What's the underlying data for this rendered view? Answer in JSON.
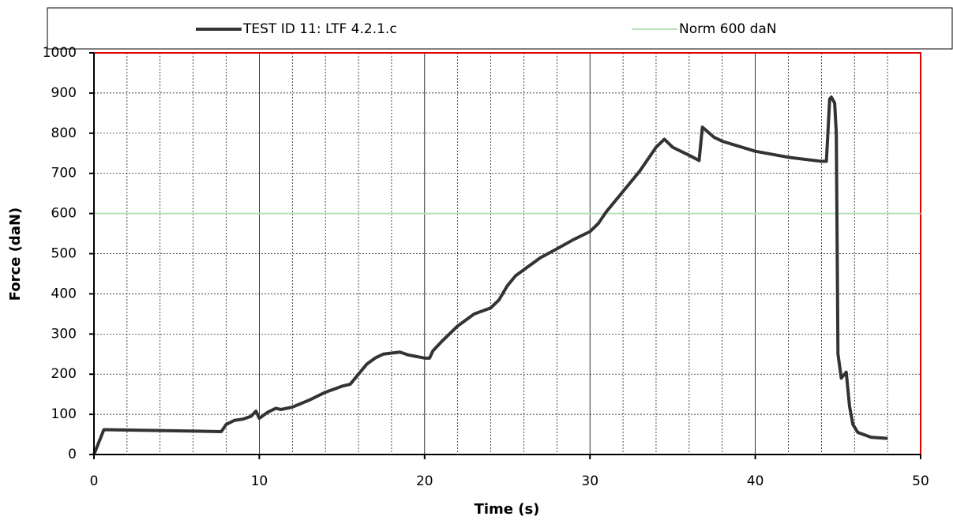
{
  "chart_data": {
    "type": "line",
    "xlabel": "Time (s)",
    "ylabel": "Force (daN)",
    "xlim": [
      0,
      50
    ],
    "xticks": [
      0,
      10,
      20,
      30,
      40,
      50
    ],
    "xminorticks": [
      2,
      4,
      6,
      8,
      12,
      14,
      16,
      18,
      22,
      24,
      26,
      28,
      32,
      34,
      36,
      38,
      42,
      44,
      46,
      48
    ],
    "ylim": [
      0,
      1000
    ],
    "yticks": [
      0,
      100,
      200,
      300,
      400,
      500,
      600,
      700,
      800,
      900,
      1000
    ],
    "grid": true,
    "series": [
      {
        "name": "TEST ID 11: LTF 4.2.1.c",
        "color": "#333333",
        "x": [
          0,
          0.6,
          7.7,
          8,
          8.5,
          9,
          9.5,
          9.8,
          10,
          10.5,
          11,
          11.3,
          12,
          13,
          14,
          15,
          15.5,
          16,
          16.5,
          17,
          17.5,
          18.5,
          19,
          20,
          20.3,
          20.5,
          21,
          22,
          23,
          24,
          24.5,
          25,
          25.5,
          26,
          27,
          28,
          29,
          30,
          30.5,
          31,
          32,
          33,
          34,
          34.5,
          35,
          36,
          36.6,
          36.8,
          37.5,
          38,
          40,
          42,
          44,
          44.3,
          44.5,
          44.6,
          44.8,
          44.9,
          45,
          45.2,
          45.5,
          45.7,
          45.9,
          46.2,
          47,
          48
        ],
        "values": [
          0,
          62,
          57,
          75,
          85,
          88,
          95,
          108,
          90,
          105,
          115,
          112,
          118,
          135,
          155,
          170,
          175,
          200,
          225,
          240,
          250,
          255,
          248,
          240,
          240,
          258,
          280,
          320,
          350,
          365,
          385,
          420,
          445,
          460,
          490,
          512,
          535,
          555,
          575,
          605,
          655,
          705,
          765,
          785,
          765,
          745,
          732,
          815,
          790,
          780,
          755,
          740,
          730,
          730,
          885,
          890,
          875,
          800,
          250,
          190,
          205,
          120,
          75,
          55,
          43,
          40
        ]
      },
      {
        "name": "Norm 600 daN",
        "color": "#b8e0b8",
        "x": [
          0,
          50
        ],
        "values": [
          600,
          600
        ]
      }
    ]
  }
}
